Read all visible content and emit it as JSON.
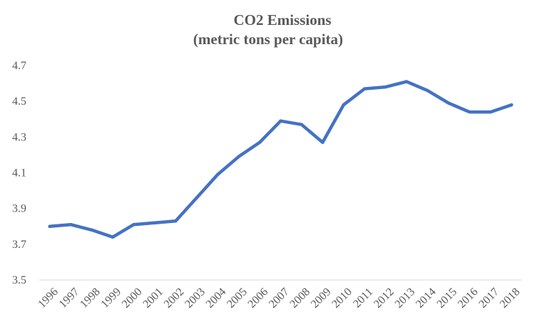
{
  "chart_data": {
    "type": "line",
    "title": "CO2 Emissions",
    "subtitle": "(metric tons per capita)",
    "xlabel": "",
    "ylabel": "",
    "categories": [
      "1996",
      "1997",
      "1998",
      "1999",
      "2000",
      "2001",
      "2002",
      "2003",
      "2004",
      "2005",
      "2006",
      "2007",
      "2008",
      "2009",
      "2010",
      "2011",
      "2012",
      "2013",
      "2014",
      "2015",
      "2016",
      "2017",
      "2018"
    ],
    "series": [
      {
        "name": "CO2 Emissions",
        "color": "#4472C4",
        "values": [
          3.8,
          3.81,
          3.78,
          3.74,
          3.81,
          3.82,
          3.83,
          3.96,
          4.09,
          4.19,
          4.27,
          4.39,
          4.37,
          4.27,
          4.48,
          4.57,
          4.58,
          4.61,
          4.56,
          4.49,
          4.44,
          4.44,
          4.48
        ]
      }
    ],
    "ylim": [
      3.5,
      4.7
    ],
    "yticks": [
      "3.5",
      "3.7",
      "3.9",
      "4.1",
      "4.3",
      "4.5",
      "4.7"
    ],
    "grid": false,
    "legend": "none"
  }
}
